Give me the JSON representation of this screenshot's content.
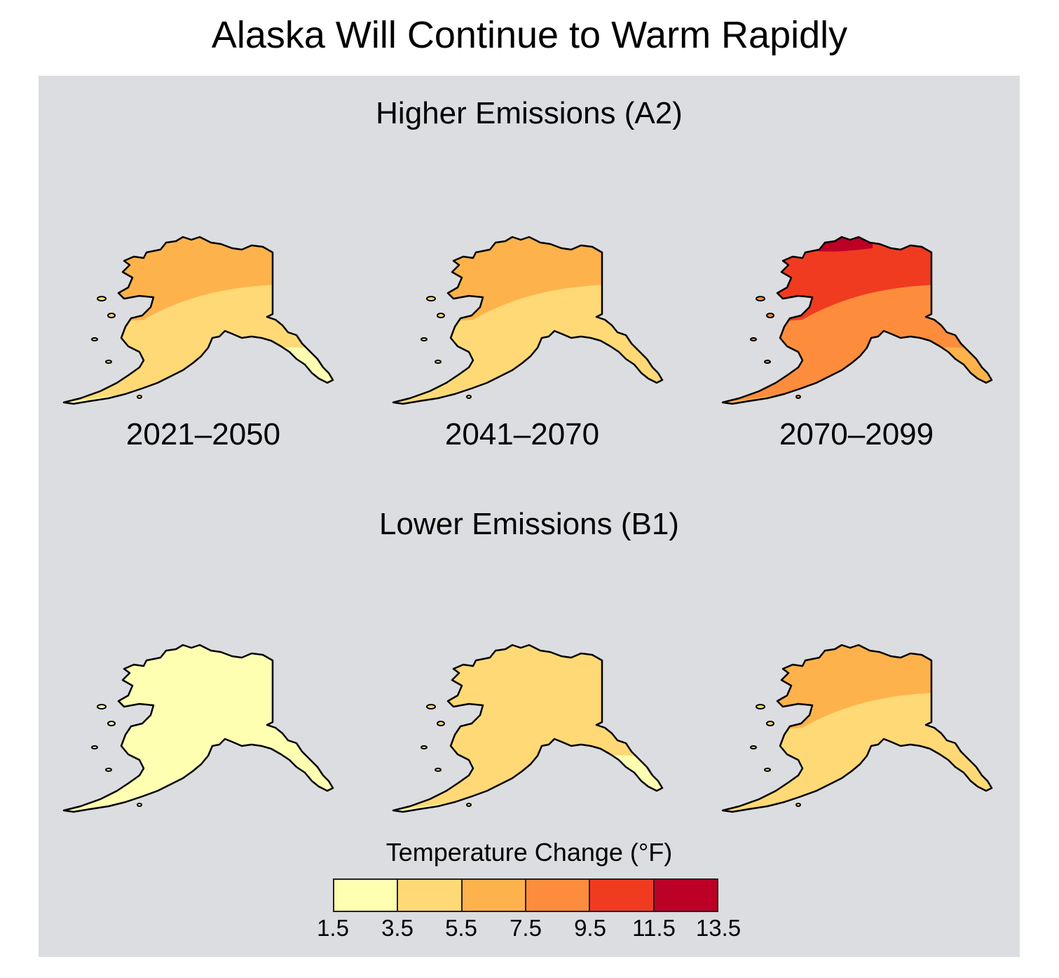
{
  "title": "Alaska Will Continue to Warm Rapidly",
  "sections": [
    {
      "label": "Higher Emissions (A2)",
      "maps": [
        {
          "period": "2021–2050",
          "north": 3,
          "mid": 2,
          "south": 1
        },
        {
          "period": "2041–2070",
          "north": 3,
          "mid": 2,
          "south": 2
        },
        {
          "period": "2070–2099",
          "north": 5,
          "mid": 4,
          "south": 3,
          "top": 6
        }
      ]
    },
    {
      "label": "Lower Emissions (B1)",
      "maps": [
        {
          "period": "",
          "north": 1,
          "mid": 1,
          "south": 1
        },
        {
          "period": "",
          "north": 2,
          "mid": 2,
          "south": 1
        },
        {
          "period": "",
          "north": 3,
          "mid": 2,
          "south": 2
        }
      ]
    }
  ],
  "legend": {
    "title": "Temperature Change (°F)",
    "colors": [
      "#ffffb2",
      "#fed976",
      "#feb24c",
      "#fd8d3c",
      "#f03b20",
      "#bd0026"
    ],
    "ticks": [
      "1.5",
      "3.5",
      "5.5",
      "7.5",
      "9.5",
      "11.5",
      "13.5"
    ]
  }
}
